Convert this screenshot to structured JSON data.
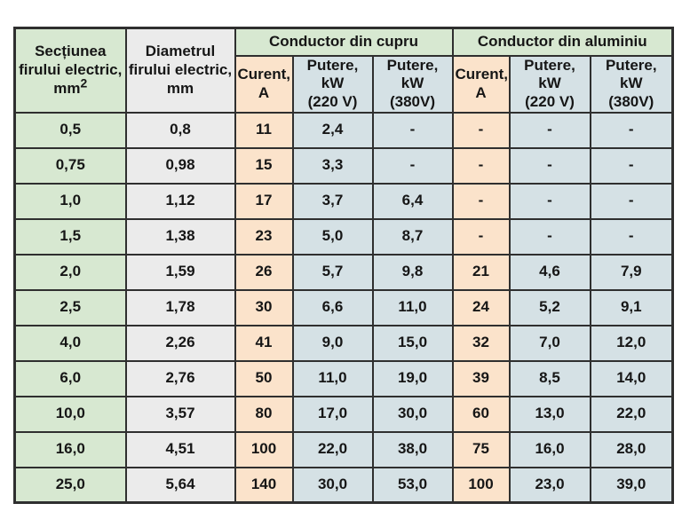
{
  "colors": {
    "green": "#d7e8d1",
    "gray": "#ebebeb",
    "orange": "#fbe3cb",
    "blue": "#d5e1e5",
    "border": "#2f2f2f",
    "text": "#161616"
  },
  "table": {
    "header": {
      "section": {
        "line1": "Secțiunea",
        "line2": "firului electric,",
        "line3_base": "mm",
        "line3_sup": "2"
      },
      "diameter": {
        "line1": "Diametrul",
        "line2": "firului electric,",
        "line3": "mm"
      },
      "copper_group": "Conductor din cupru",
      "aluminium_group": "Conductor din aluminiu",
      "current": {
        "line1": "Curent,",
        "line2": "A"
      },
      "power220": {
        "line1": "Putere, kW",
        "line2": "(220 V)"
      },
      "power380": {
        "line1": "Putere, kW",
        "line2": "(380V)"
      }
    },
    "rows": [
      [
        "0,5",
        "0,8",
        "11",
        "2,4",
        "-",
        "-",
        "-",
        "-"
      ],
      [
        "0,75",
        "0,98",
        "15",
        "3,3",
        "-",
        "-",
        "-",
        "-"
      ],
      [
        "1,0",
        "1,12",
        "17",
        "3,7",
        "6,4",
        "-",
        "-",
        "-"
      ],
      [
        "1,5",
        "1,38",
        "23",
        "5,0",
        "8,7",
        "-",
        "-",
        "-"
      ],
      [
        "2,0",
        "1,59",
        "26",
        "5,7",
        "9,8",
        "21",
        "4,6",
        "7,9"
      ],
      [
        "2,5",
        "1,78",
        "30",
        "6,6",
        "11,0",
        "24",
        "5,2",
        "9,1"
      ],
      [
        "4,0",
        "2,26",
        "41",
        "9,0",
        "15,0",
        "32",
        "7,0",
        "12,0"
      ],
      [
        "6,0",
        "2,76",
        "50",
        "11,0",
        "19,0",
        "39",
        "8,5",
        "14,0"
      ],
      [
        "10,0",
        "3,57",
        "80",
        "17,0",
        "30,0",
        "60",
        "13,0",
        "22,0"
      ],
      [
        "16,0",
        "4,51",
        "100",
        "22,0",
        "38,0",
        "75",
        "16,0",
        "28,0"
      ],
      [
        "25,0",
        "5,64",
        "140",
        "30,0",
        "53,0",
        "100",
        "23,0",
        "39,0"
      ]
    ]
  }
}
